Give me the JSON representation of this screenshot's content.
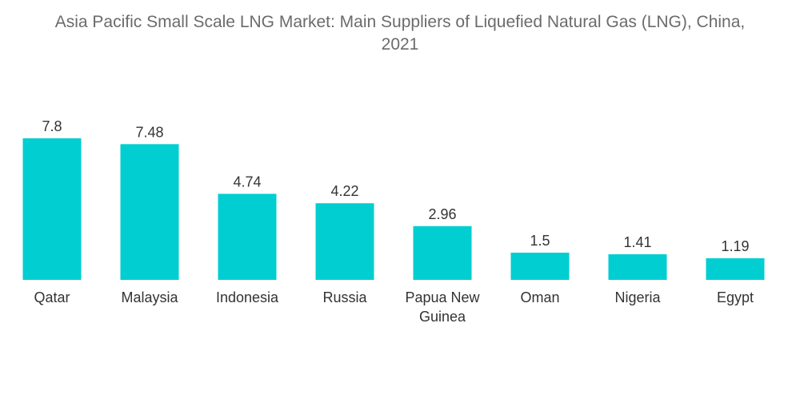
{
  "chart_data": {
    "type": "bar",
    "title": "Asia Pacific Small Scale LNG Market: Main Suppliers of Liquefied Natural Gas (LNG), China,",
    "title_line2": "2021",
    "categories": [
      "Qatar",
      "Malaysia",
      "Indonesia",
      "Russia",
      "Papua New Guinea",
      "Oman",
      "Nigeria",
      "Egypt"
    ],
    "category_lines": [
      [
        "Qatar"
      ],
      [
        "Malaysia"
      ],
      [
        "Indonesia"
      ],
      [
        "Russia"
      ],
      [
        "Papua New",
        "Guinea"
      ],
      [
        "Oman"
      ],
      [
        "Nigeria"
      ],
      [
        "Egypt"
      ]
    ],
    "values": [
      7.8,
      7.48,
      4.74,
      4.22,
      2.96,
      1.5,
      1.41,
      1.19
    ],
    "value_labels": [
      "7.8",
      "7.48",
      "4.74",
      "4.22",
      "2.96",
      "1.5",
      "1.41",
      "1.19"
    ],
    "xlabel": "",
    "ylabel": "",
    "ylim": [
      0,
      7.8
    ],
    "grid": false,
    "legend": "none",
    "bar_color": "#00ced1"
  }
}
